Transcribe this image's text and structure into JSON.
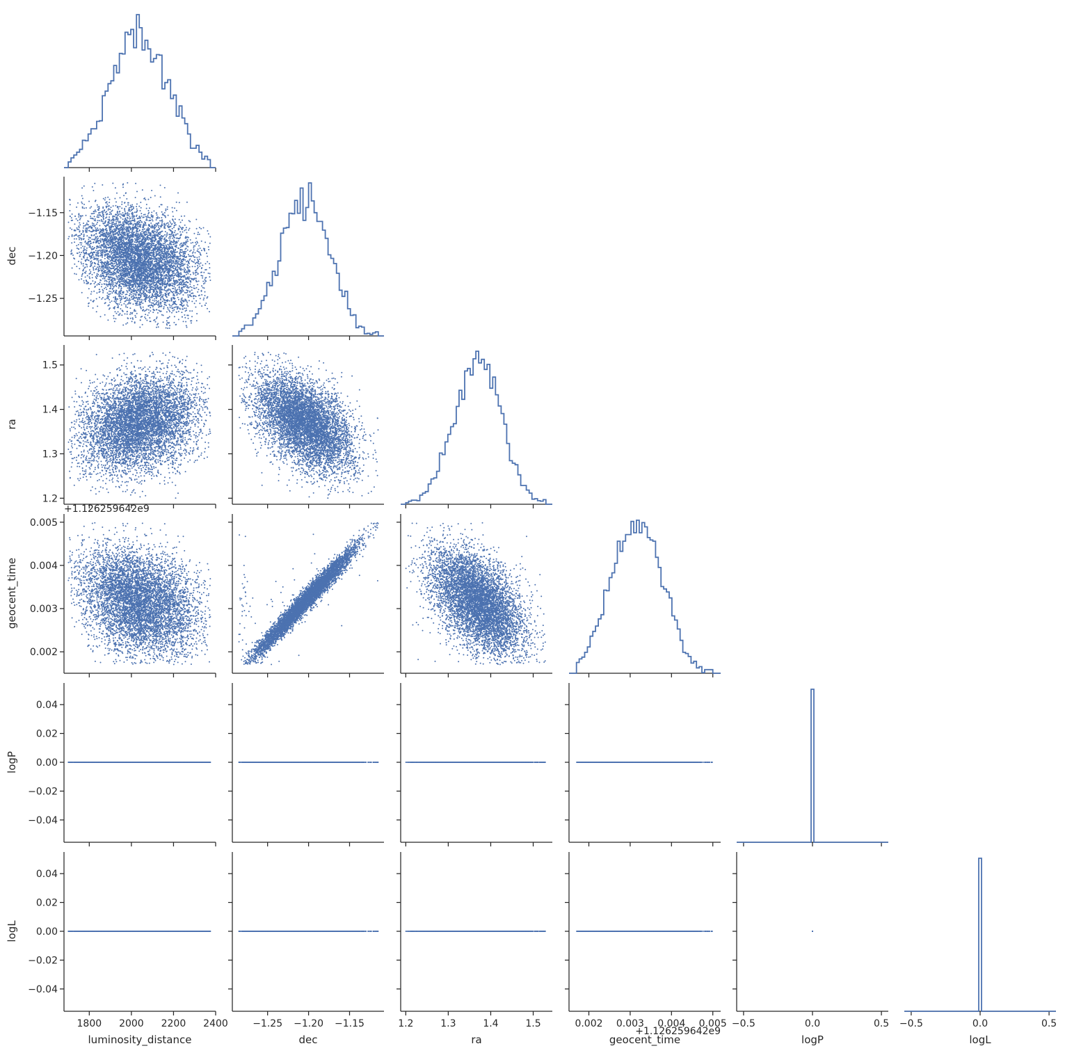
{
  "chart_data": {
    "type": "pairplot",
    "layout": "corner",
    "variables": [
      "luminosity_distance",
      "dec",
      "ra",
      "geocent_time",
      "logP",
      "logL"
    ],
    "color": "#4c72b0",
    "diag_kind": "step-histogram",
    "offdiag_kind": "scatter",
    "n_samples_approx": 6000,
    "axes": {
      "luminosity_distance": {
        "label": "luminosity_distance",
        "range": [
          1680,
          2400
        ],
        "ticks": [
          1800,
          2000,
          2200,
          2400
        ],
        "tick_labels": [
          "1800",
          "2000",
          "2200",
          "2400"
        ]
      },
      "dec": {
        "label": "dec",
        "range": [
          -1.293,
          -1.108
        ],
        "ticks": [
          -1.25,
          -1.2,
          -1.15
        ],
        "tick_labels": [
          "−1.25",
          "−1.20",
          "−1.15"
        ]
      },
      "ra": {
        "label": "ra",
        "range": [
          1.188,
          1.545
        ],
        "ticks": [
          1.2,
          1.3,
          1.4,
          1.5
        ],
        "tick_labels": [
          "1.2",
          "1.3",
          "1.4",
          "1.5"
        ]
      },
      "geocent_time": {
        "label": "geocent_time",
        "range": [
          0.00152,
          0.00519
        ],
        "ticks": [
          0.002,
          0.003,
          0.004,
          0.005
        ],
        "tick_labels": [
          "0.002",
          "0.003",
          "0.004",
          "0.005"
        ],
        "offset_text": "+1.126259642e9"
      },
      "logP": {
        "label": "logP",
        "range": [
          -0.055,
          0.055
        ],
        "ticks": [
          -0.04,
          -0.02,
          0.0,
          0.02,
          0.04
        ],
        "tick_labels": [
          "−0.04",
          "−0.02",
          "0.00",
          "0.02",
          "0.04"
        ],
        "x_ticks": [
          -0.5,
          0.0,
          0.5
        ],
        "x_tick_labels": [
          "−0.5",
          "0.0",
          "0.5"
        ],
        "x_range": [
          -0.55,
          0.55
        ]
      },
      "logL": {
        "label": "logL",
        "range": [
          -0.055,
          0.055
        ],
        "ticks": [
          -0.04,
          -0.02,
          0.0,
          0.02,
          0.04
        ],
        "tick_labels": [
          "−0.04",
          "−0.02",
          "0.00",
          "0.02",
          "0.04"
        ],
        "x_ticks": [
          -0.5,
          0.0,
          0.5
        ],
        "x_tick_labels": [
          "−0.5",
          "0.0",
          "0.5"
        ],
        "x_range": [
          -0.55,
          0.55
        ]
      }
    },
    "distributions": {
      "luminosity_distance": {
        "mean": 2040,
        "sd": 140,
        "min": 1700,
        "max": 2375
      },
      "dec": {
        "mean": -1.205,
        "sd": 0.03,
        "min": -1.285,
        "max": -1.115
      },
      "ra": {
        "mean": 1.37,
        "sd": 0.055,
        "min": 1.2,
        "max": 1.53
      },
      "geocent_time": {
        "mean": 0.00315,
        "sd": 0.0006,
        "min": 0.0017,
        "max": 0.005
      },
      "logP": {
        "constant": 0.0
      },
      "logL": {
        "constant": 0.0
      }
    },
    "correlations": {
      "dec|luminosity_distance": -0.3,
      "ra|luminosity_distance": 0.25,
      "ra|dec": -0.5,
      "geocent_time|luminosity_distance": -0.3,
      "geocent_time|dec": 0.98,
      "geocent_time|ra": -0.6
    }
  }
}
